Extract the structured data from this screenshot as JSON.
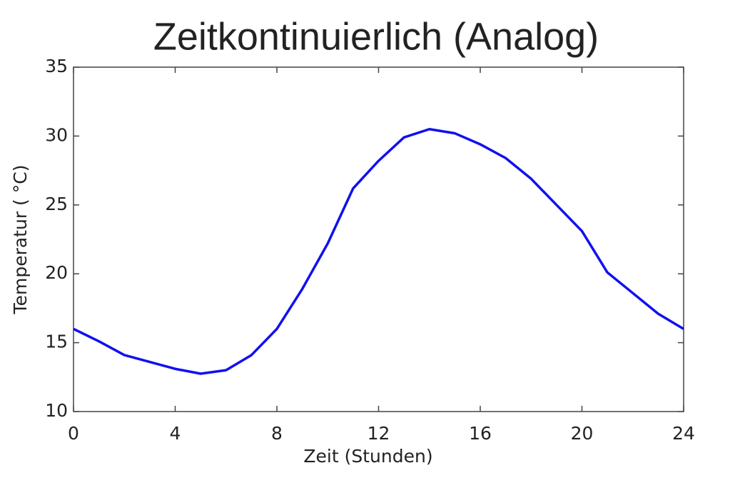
{
  "chart_data": {
    "type": "line",
    "title": "Zeitkontinuierlich (Analog)",
    "x_label": "Zeit (Stunden)",
    "y_label": "Temperatur ( °C)",
    "x": [
      0,
      1,
      2,
      3,
      4,
      5,
      6,
      7,
      8,
      9,
      10,
      11,
      12,
      13,
      14,
      15,
      16,
      17,
      18,
      19,
      20,
      21,
      22,
      23,
      24
    ],
    "series": [
      {
        "color": "#1010f0",
        "values": [
          16.0,
          15.1,
          14.1,
          13.6,
          13.1,
          12.75,
          13.0,
          14.1,
          16.0,
          18.9,
          22.2,
          26.2,
          28.2,
          29.9,
          30.5,
          30.2,
          29.4,
          28.4,
          26.9,
          25.0,
          23.1,
          20.1,
          18.6,
          17.1,
          16.0
        ]
      }
    ],
    "xlim": [
      0,
      24
    ],
    "xticks": [
      0,
      4,
      8,
      12,
      16,
      20,
      24
    ],
    "ylim": [
      10,
      35
    ],
    "yticks": [
      10,
      15,
      20,
      25,
      30,
      35
    ],
    "grid": false
  }
}
